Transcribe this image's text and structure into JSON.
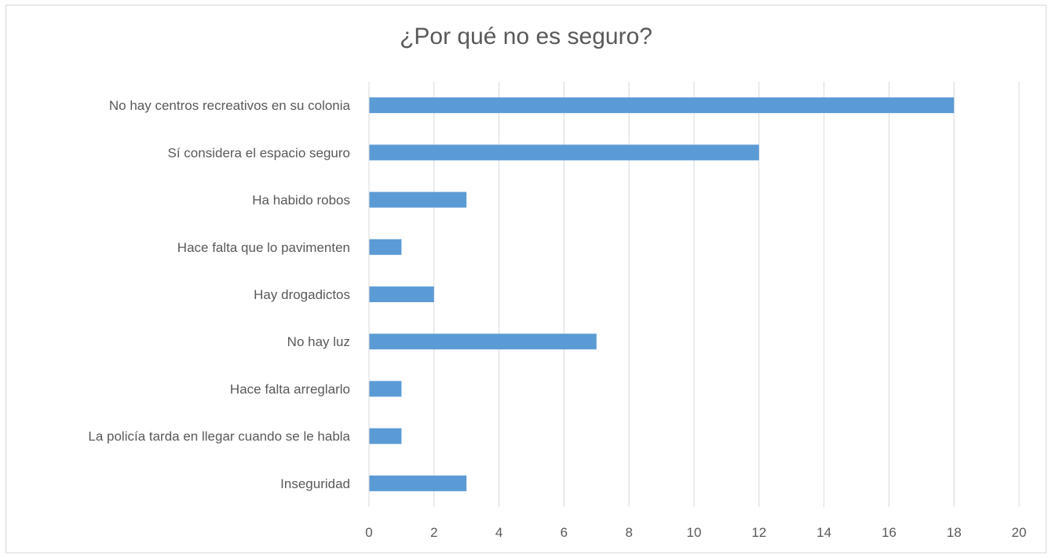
{
  "chart_data": {
    "type": "bar",
    "orientation": "horizontal",
    "title": "¿Por qué no es seguro?",
    "categories": [
      "No hay centros recreativos en su colonia",
      "Sí considera el espacio seguro",
      "Ha habido robos",
      "Hace falta que lo pavimenten",
      "Hay drogadictos",
      "No hay luz",
      "Hace falta arreglarlo",
      "La policía tarda en llegar cuando se le habla",
      "Inseguridad"
    ],
    "values": [
      18,
      12,
      3,
      1,
      2,
      7,
      1,
      1,
      3
    ],
    "xticks": [
      "0",
      "2",
      "4",
      "6",
      "8",
      "10",
      "12",
      "14",
      "16",
      "18",
      "20"
    ],
    "xlim": [
      0,
      20
    ],
    "xlabel": "",
    "ylabel": "",
    "grid": true,
    "legend": "none",
    "bar_color": "#5b9bd5",
    "grid_color": "#d9d9d9"
  }
}
